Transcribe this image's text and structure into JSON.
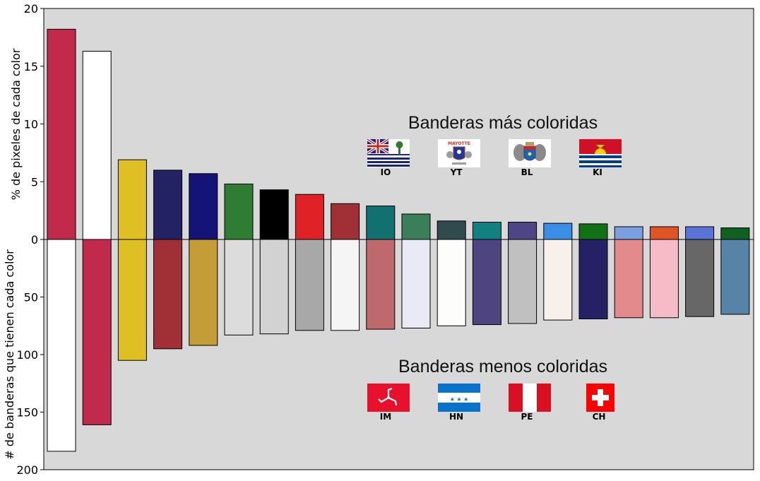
{
  "chart_data": {
    "type": "bar",
    "grid": false,
    "top": {
      "ylabel": "% de pixeles de cada color",
      "ylim": [
        0,
        20
      ],
      "ticks": [
        "0",
        "5",
        "10",
        "15",
        "20"
      ],
      "colors": [
        "#c12a4b",
        "#ffffff",
        "#dfc024",
        "#232265",
        "#131378",
        "#2e7d32",
        "#000000",
        "#e02226",
        "#a03036",
        "#127070",
        "#3a7f59",
        "#314a4e",
        "#128080",
        "#4e4585",
        "#3b8ee5",
        "#127017",
        "#7aa0e0",
        "#e05526",
        "#5974d6",
        "#12601f"
      ],
      "values": [
        18.2,
        16.3,
        6.9,
        6.0,
        5.7,
        4.8,
        4.3,
        3.9,
        3.1,
        2.9,
        2.2,
        1.6,
        1.5,
        1.5,
        1.4,
        1.35,
        1.1,
        1.1,
        1.1,
        1.0
      ]
    },
    "bottom": {
      "ylabel": "# de banderas que tienen cada color",
      "ylim": [
        0,
        200
      ],
      "ticks": [
        "0",
        "50",
        "100",
        "150",
        "200"
      ],
      "colors": [
        "#ffffff",
        "#c12a4b",
        "#dfc024",
        "#a03036",
        "#c49d38",
        "#dcdcdc",
        "#d2d2d2",
        "#a8a8a8",
        "#f5f5f5",
        "#be6a6c",
        "#eaeaf6",
        "#fdfdfc",
        "#4e4580",
        "#c0c0c0",
        "#f8f0ea",
        "#242265",
        "#e28a8c",
        "#f5bcc7",
        "#676767",
        "#5783a8"
      ],
      "values": [
        184,
        161,
        105,
        95,
        92,
        83,
        82,
        79,
        79,
        78,
        77,
        75,
        74,
        73,
        70,
        69,
        68,
        68,
        67,
        65
      ]
    },
    "annotations": {
      "most_colorful": {
        "title": "Banderas más coloridas",
        "codes": [
          "IO",
          "YT",
          "BL",
          "KI"
        ]
      },
      "least_colorful": {
        "title": "Banderas menos coloridas",
        "codes": [
          "IM",
          "HN",
          "PE",
          "CH"
        ]
      }
    },
    "flag_labels": {
      "yt_text": "MAYOTTE"
    },
    "background": "#d8d8d8"
  }
}
